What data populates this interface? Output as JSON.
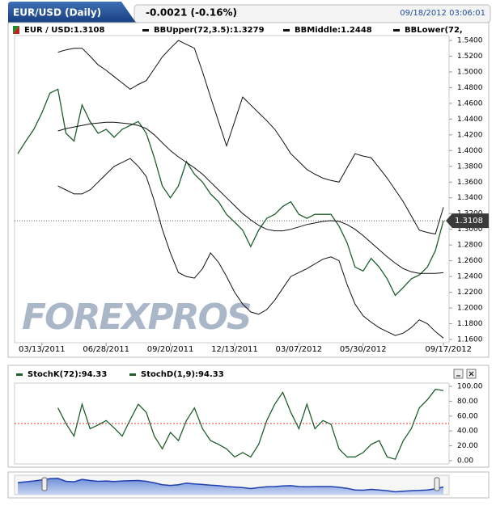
{
  "header": {
    "tab": "EUR/USD (Daily)",
    "change": "-0.0021 (-0.16%)",
    "timestamp": "09/18/2012 03:06:01"
  },
  "watermark": "FOREXPROS",
  "chart_data": [
    {
      "type": "line",
      "categories": [
        null,
        null,
        null,
        "03/13/2011",
        null,
        null,
        null,
        null,
        null,
        null,
        null,
        "06/28/2011",
        null,
        null,
        null,
        null,
        null,
        null,
        null,
        "09/20/2011",
        null,
        null,
        null,
        null,
        null,
        null,
        null,
        "12/13/2011",
        null,
        null,
        null,
        null,
        null,
        null,
        null,
        "03/07/2012",
        null,
        null,
        null,
        null,
        null,
        null,
        null,
        "05/30/2012",
        null,
        null,
        null,
        null,
        null,
        null,
        null,
        null,
        null,
        "09/17/2012"
      ],
      "series": [
        {
          "name": "EUR / USD:1.3108",
          "color": "#1d5e2c",
          "values": [
            1.396,
            1.412,
            1.427,
            1.448,
            1.473,
            1.478,
            1.422,
            1.412,
            1.458,
            1.437,
            1.422,
            1.427,
            1.417,
            1.427,
            1.432,
            1.437,
            1.422,
            1.391,
            1.355,
            1.34,
            1.355,
            1.386,
            1.37,
            1.36,
            1.345,
            1.335,
            1.319,
            1.309,
            1.299,
            1.278,
            1.299,
            1.314,
            1.319,
            1.329,
            1.335,
            1.319,
            1.314,
            1.319,
            1.319,
            1.319,
            1.304,
            1.283,
            1.252,
            1.247,
            1.263,
            1.252,
            1.237,
            1.216,
            1.226,
            1.237,
            1.242,
            1.252,
            1.273,
            1.3108
          ]
        },
        {
          "name": "BBUpper(72,3.5):1.3279",
          "color": "#111111",
          "values": [
            null,
            null,
            null,
            null,
            null,
            1.525,
            1.528,
            1.53,
            1.53,
            1.52,
            1.509,
            1.502,
            1.494,
            1.486,
            1.478,
            1.484,
            1.489,
            1.504,
            1.519,
            1.53,
            1.54,
            1.535,
            1.53,
            1.5,
            1.468,
            1.437,
            1.406,
            1.437,
            1.468,
            1.458,
            1.448,
            1.438,
            1.427,
            1.412,
            1.396,
            1.386,
            1.376,
            1.37,
            1.365,
            1.362,
            1.36,
            1.378,
            1.396,
            1.393,
            1.391,
            1.378,
            1.365,
            1.35,
            1.335,
            1.317,
            1.299,
            1.296,
            1.294,
            1.3279
          ]
        },
        {
          "name": "BBMiddle:1.2448",
          "color": "#111111",
          "values": [
            null,
            null,
            null,
            null,
            null,
            1.425,
            1.428,
            1.43,
            1.432,
            1.434,
            1.435,
            1.436,
            1.436,
            1.435,
            1.434,
            1.432,
            1.428,
            1.42,
            1.41,
            1.4,
            1.392,
            1.385,
            1.378,
            1.37,
            1.36,
            1.35,
            1.34,
            1.33,
            1.32,
            1.312,
            1.305,
            1.3,
            1.298,
            1.298,
            1.3,
            1.303,
            1.306,
            1.308,
            1.31,
            1.311,
            1.31,
            1.306,
            1.3,
            1.292,
            1.283,
            1.274,
            1.265,
            1.257,
            1.25,
            1.246,
            1.244,
            1.244,
            1.244,
            1.2448
          ]
        },
        {
          "name": "BBLower(72,",
          "color": "#111111",
          "values": [
            null,
            null,
            null,
            null,
            null,
            1.355,
            1.35,
            1.345,
            1.345,
            1.35,
            1.36,
            1.37,
            1.38,
            1.385,
            1.39,
            1.38,
            1.367,
            1.336,
            1.3,
            1.27,
            1.245,
            1.24,
            1.238,
            1.25,
            1.27,
            1.258,
            1.24,
            1.22,
            1.205,
            1.195,
            1.192,
            1.198,
            1.21,
            1.225,
            1.24,
            1.245,
            1.25,
            1.256,
            1.262,
            1.265,
            1.26,
            1.23,
            1.205,
            1.19,
            1.182,
            1.175,
            1.17,
            1.165,
            1.168,
            1.175,
            1.185,
            1.18,
            1.17,
            1.1617
          ]
        }
      ],
      "ylim": [
        1.16,
        1.54
      ],
      "yticks": [
        {
          "value": 1.16,
          "label": "1.1600"
        },
        {
          "value": 1.18,
          "label": "1.1800"
        },
        {
          "value": 1.2,
          "label": "1.2000"
        },
        {
          "value": 1.22,
          "label": "1.2200"
        },
        {
          "value": 1.24,
          "label": "1.2400"
        },
        {
          "value": 1.26,
          "label": "1.2600"
        },
        {
          "value": 1.28,
          "label": "1.2800"
        },
        {
          "value": 1.3,
          "label": "1.3000"
        },
        {
          "value": 1.32,
          "label": "1.3200"
        },
        {
          "value": 1.34,
          "label": "1.3400"
        },
        {
          "value": 1.36,
          "label": "1.3600"
        },
        {
          "value": 1.38,
          "label": "1.3800"
        },
        {
          "value": 1.4,
          "label": "1.4000"
        },
        {
          "value": 1.42,
          "label": "1.4200"
        },
        {
          "value": 1.44,
          "label": "1.4400"
        },
        {
          "value": 1.46,
          "label": "1.4600"
        },
        {
          "value": 1.48,
          "label": "1.4800"
        },
        {
          "value": 1.5,
          "label": "1.5000"
        },
        {
          "value": 1.52,
          "label": "1.5200"
        },
        {
          "value": 1.54,
          "label": "1.5400"
        }
      ],
      "grid": false
    },
    {
      "type": "line",
      "series": [
        {
          "name": "StochK(72):94.33",
          "color": "#1d5e2c",
          "values": [
            null,
            null,
            null,
            null,
            null,
            71,
            50,
            33,
            76,
            43,
            48,
            54,
            44,
            33,
            55,
            76,
            65,
            33,
            16,
            38,
            27,
            54,
            71,
            43,
            27,
            22,
            16,
            5,
            11,
            5,
            22,
            54,
            76,
            92,
            65,
            43,
            76,
            43,
            54,
            49,
            16,
            5,
            5,
            11,
            22,
            27,
            5,
            2,
            27,
            43,
            71,
            82,
            96,
            94.33
          ]
        },
        {
          "name": "StochD(1,9):94.33",
          "color": "#1d5e2c",
          "values": [
            null,
            null,
            null,
            null,
            null,
            71,
            50,
            33,
            76,
            43,
            48,
            54,
            44,
            33,
            55,
            76,
            65,
            33,
            16,
            38,
            27,
            54,
            71,
            43,
            27,
            22,
            16,
            5,
            11,
            5,
            22,
            54,
            76,
            92,
            65,
            43,
            76,
            43,
            54,
            49,
            16,
            5,
            5,
            11,
            22,
            27,
            5,
            2,
            27,
            43,
            71,
            82,
            96,
            94.33
          ]
        }
      ],
      "reference_line": 50,
      "ylim": [
        0,
        100
      ],
      "yticks": [
        {
          "value": 0,
          "label": "0.00"
        },
        {
          "value": 20,
          "label": "20.00"
        },
        {
          "value": 40,
          "label": "40.00"
        },
        {
          "value": 60,
          "label": "60.00"
        },
        {
          "value": 80,
          "label": "80.00"
        },
        {
          "value": 100,
          "label": "100.00"
        }
      ]
    }
  ]
}
